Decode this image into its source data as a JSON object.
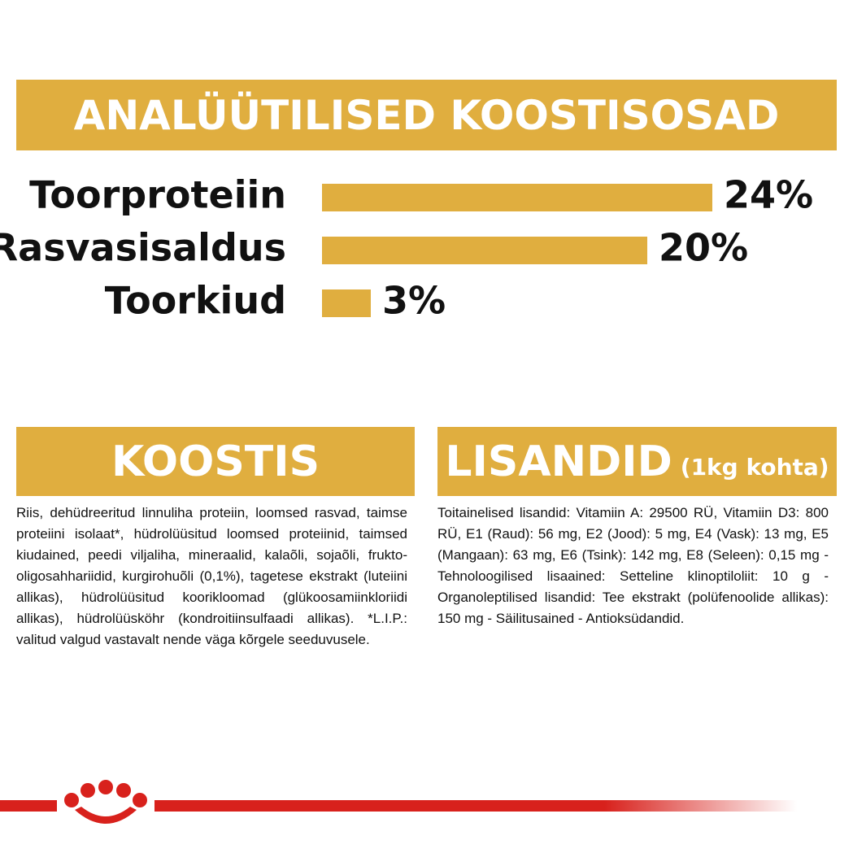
{
  "chart_data": {
    "type": "bar",
    "orientation": "horizontal",
    "title": "ANALÜÜTILISED KOOSTISOSAD",
    "categories": [
      "Toorproteiin",
      "Rasvasisaldus",
      "Toorkiud"
    ],
    "values": [
      24,
      20,
      3
    ],
    "value_labels": [
      "24%",
      "20%",
      "3%"
    ],
    "color": "#e0ae3f"
  },
  "koostis": {
    "title": "KOOSTIS",
    "text": "Riis, dehüdreeritud linnuliha proteiin, loomsed rasvad, taimse proteiini isolaat*, hüdrolüüsitud loomsed proteiinid, taimsed kiudained, peedi viljaliha, mineraalid, kalaõli, sojaõli, frukto-oligosahhariidid, kurgirohuõli (0,1%), tagetese ekstrakt (luteiini allikas), hüdrolüüsitud koorikloomad (glükoosamiinkloriidi allikas), hüdrolüüsköhr (kondroitiinsulfaadi allikas). *L.I.P.: valitud valgud vastavalt nende väga kõrgele seeduvusele."
  },
  "lisandid": {
    "title": "LISANDID",
    "note": "(1kg kohta)",
    "text": "Toitainelised lisandid: Vitamiin A: 29500 RÜ, Vitamiin D3: 800 RÜ, E1 (Raud): 56 mg, E2 (Jood): 5 mg, E4 (Vask): 13 mg, E5 (Mangaan): 63 mg, E6 (Tsink): 142 mg, E8 (Seleen): 0,15 mg - Tehnoloogilised lisaained: Setteline klinoptiloliit: 10 g - Organoleptilised lisandid: Tee ekstrakt (polüfenoolide allikas): 150 mg - Säilitusained - Antioksüdandid."
  }
}
